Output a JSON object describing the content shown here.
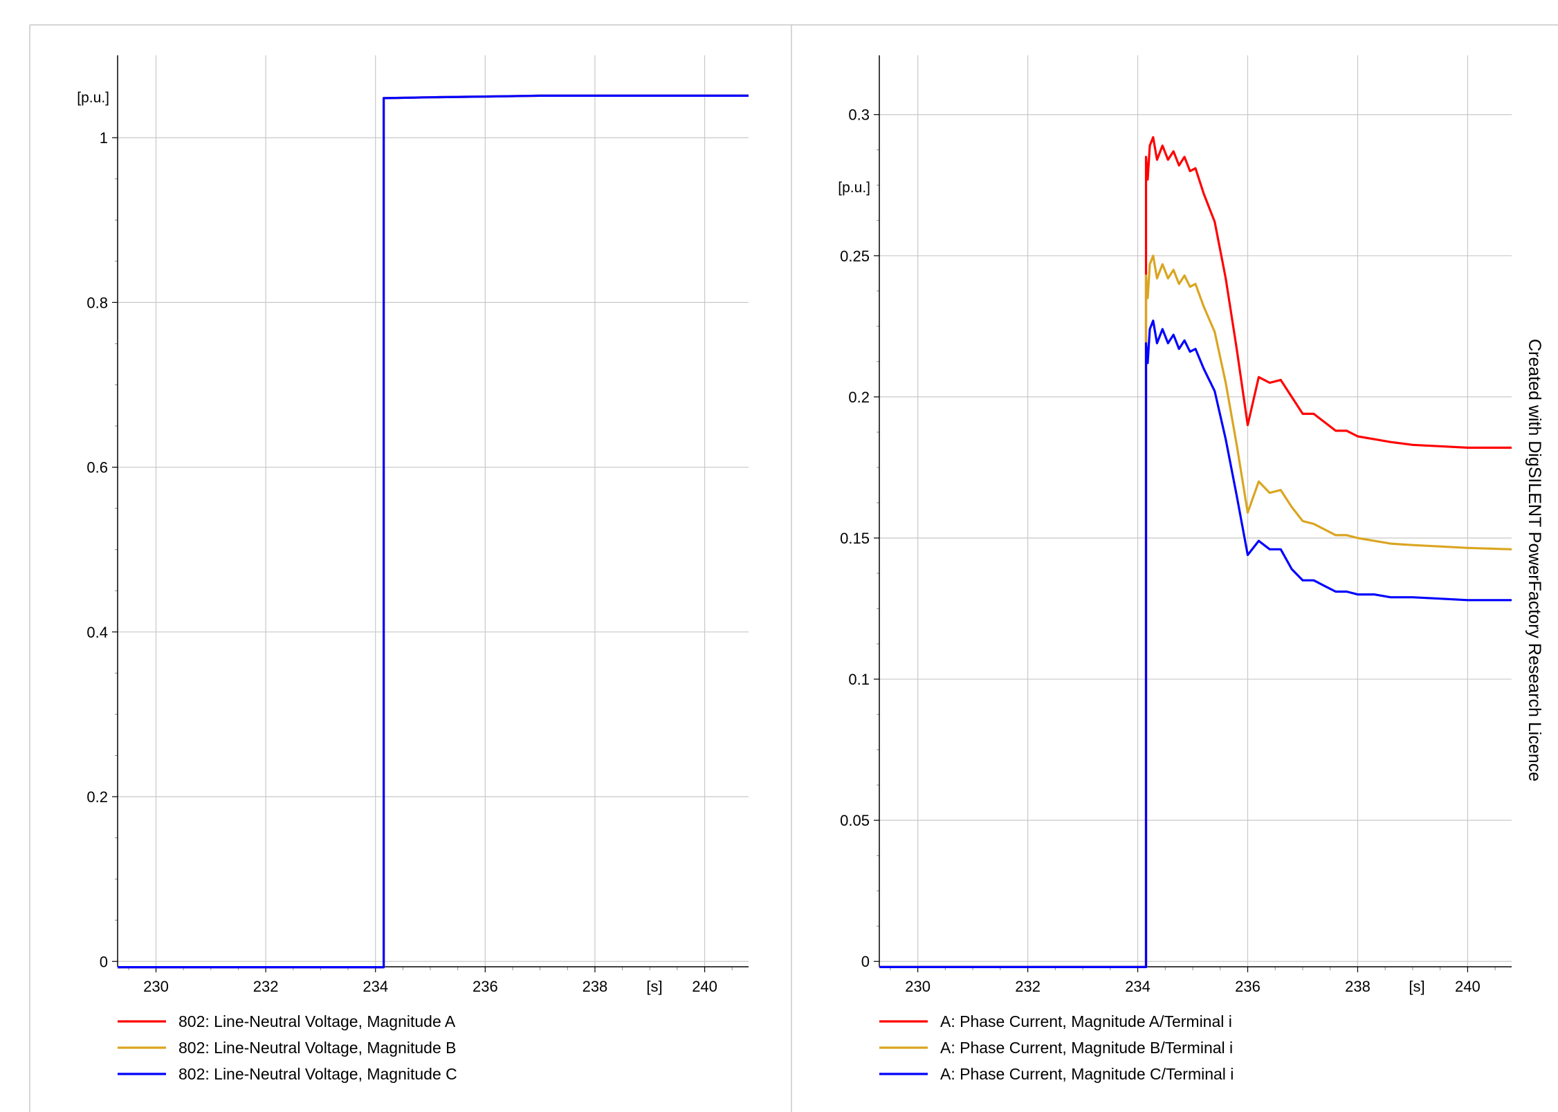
{
  "watermark": "Created with DigSILENT PowerFactory Research Licence",
  "colors": {
    "phase_a": "#ff0000",
    "phase_b": "#daa520",
    "phase_c": "#0000ff",
    "grid": "#c8c8c8",
    "axis": "#000000",
    "border": "#c8c8c8"
  },
  "chart_data": [
    {
      "type": "line",
      "x_unit": "[s]",
      "y_unit": "[p.u.]",
      "xlim": [
        229.3,
        240.8
      ],
      "ylim": [
        -0.0065,
        1.1
      ],
      "xticks": [
        230,
        232,
        234,
        236,
        238,
        240
      ],
      "xtick_labels": [
        "230",
        "232",
        "234",
        "236",
        "238",
        "240"
      ],
      "yticks": [
        0,
        0.2,
        0.4,
        0.6,
        0.8,
        1
      ],
      "ytick_labels": [
        "0",
        "0.2",
        "0.4",
        "0.6",
        "0.8",
        "1"
      ],
      "grid": true,
      "legend_position": "bottom",
      "series": [
        {
          "name": "802: Line-Neutral Voltage, Magnitude A",
          "color": "#ff0000",
          "x": [
            229.3,
            234.15,
            234.15,
            234.2,
            235,
            236,
            237,
            238,
            239,
            240,
            240.8
          ],
          "y": [
            -0.007,
            -0.007,
            1.048,
            1.048,
            1.049,
            1.05,
            1.051,
            1.051,
            1.051,
            1.051,
            1.051
          ]
        },
        {
          "name": "802: Line-Neutral Voltage, Magnitude B",
          "color": "#daa520",
          "x": [
            229.3,
            234.15,
            234.15,
            234.2,
            235,
            236,
            237,
            238,
            239,
            240,
            240.8
          ],
          "y": [
            -0.007,
            -0.007,
            1.048,
            1.048,
            1.049,
            1.05,
            1.051,
            1.051,
            1.051,
            1.051,
            1.051
          ]
        },
        {
          "name": "802: Line-Neutral Voltage, Magnitude C",
          "color": "#0000ff",
          "x": [
            229.3,
            234.15,
            234.15,
            234.2,
            235,
            236,
            237,
            238,
            239,
            240,
            240.8
          ],
          "y": [
            -0.007,
            -0.007,
            1.048,
            1.048,
            1.049,
            1.05,
            1.051,
            1.051,
            1.051,
            1.051,
            1.051
          ]
        }
      ]
    },
    {
      "type": "line",
      "x_unit": "[s]",
      "y_unit": "[p.u.]",
      "xlim": [
        229.3,
        240.8
      ],
      "ylim": [
        -0.0019,
        0.321
      ],
      "xticks": [
        230,
        232,
        234,
        236,
        238,
        240
      ],
      "xtick_labels": [
        "230",
        "232",
        "234",
        "236",
        "238",
        "240"
      ],
      "yticks": [
        0,
        0.05,
        0.1,
        0.15,
        0.2,
        0.25,
        0.3
      ],
      "ytick_labels": [
        "0",
        "0.05",
        "0.1",
        "0.15",
        "0.2",
        "0.25",
        "0.3"
      ],
      "grid": true,
      "legend_position": "bottom",
      "series": [
        {
          "name": "A: Phase Current, Magnitude A/Terminal i",
          "color": "#ff0000",
          "x": [
            229.3,
            234.15,
            234.15,
            234.18,
            234.22,
            234.28,
            234.35,
            234.45,
            234.55,
            234.65,
            234.75,
            234.85,
            234.95,
            235.05,
            235.2,
            235.4,
            235.6,
            235.8,
            236.0,
            236.2,
            236.4,
            236.6,
            236.8,
            237.0,
            237.2,
            237.4,
            237.6,
            237.8,
            238.0,
            238.3,
            238.6,
            239.0,
            239.5,
            240.0,
            240.8
          ],
          "y": [
            -0.002,
            -0.002,
            0.285,
            0.277,
            0.289,
            0.292,
            0.284,
            0.289,
            0.284,
            0.287,
            0.282,
            0.285,
            0.28,
            0.281,
            0.272,
            0.262,
            0.242,
            0.217,
            0.19,
            0.207,
            0.205,
            0.206,
            0.2,
            0.194,
            0.194,
            0.191,
            0.188,
            0.188,
            0.186,
            0.185,
            0.184,
            0.183,
            0.1825,
            0.182,
            0.182
          ]
        },
        {
          "name": "A: Phase Current, Magnitude B/Terminal i",
          "color": "#daa520",
          "x": [
            229.3,
            234.15,
            234.15,
            234.18,
            234.22,
            234.28,
            234.35,
            234.45,
            234.55,
            234.65,
            234.75,
            234.85,
            234.95,
            235.05,
            235.2,
            235.4,
            235.6,
            235.8,
            236.0,
            236.2,
            236.4,
            236.6,
            236.8,
            237.0,
            237.2,
            237.4,
            237.6,
            237.8,
            238.0,
            238.3,
            238.6,
            239.0,
            239.5,
            240.0,
            240.8
          ],
          "y": [
            -0.002,
            -0.002,
            0.243,
            0.235,
            0.247,
            0.25,
            0.242,
            0.247,
            0.242,
            0.245,
            0.24,
            0.243,
            0.239,
            0.24,
            0.232,
            0.223,
            0.205,
            0.183,
            0.159,
            0.17,
            0.166,
            0.167,
            0.161,
            0.156,
            0.155,
            0.153,
            0.151,
            0.151,
            0.15,
            0.149,
            0.148,
            0.1475,
            0.147,
            0.1465,
            0.146
          ]
        },
        {
          "name": "A: Phase Current, Magnitude C/Terminal i",
          "color": "#0000ff",
          "x": [
            229.3,
            234.15,
            234.15,
            234.18,
            234.22,
            234.28,
            234.35,
            234.45,
            234.55,
            234.65,
            234.75,
            234.85,
            234.95,
            235.05,
            235.2,
            235.4,
            235.6,
            235.8,
            236.0,
            236.2,
            236.4,
            236.6,
            236.8,
            237.0,
            237.2,
            237.4,
            237.6,
            237.8,
            238.0,
            238.3,
            238.6,
            239.0,
            239.5,
            240.0,
            240.8
          ],
          "y": [
            -0.002,
            -0.002,
            0.219,
            0.212,
            0.224,
            0.227,
            0.219,
            0.224,
            0.219,
            0.222,
            0.217,
            0.22,
            0.216,
            0.217,
            0.21,
            0.202,
            0.185,
            0.165,
            0.144,
            0.149,
            0.146,
            0.146,
            0.139,
            0.135,
            0.135,
            0.133,
            0.131,
            0.131,
            0.13,
            0.13,
            0.129,
            0.129,
            0.1285,
            0.128,
            0.128
          ]
        }
      ]
    }
  ]
}
